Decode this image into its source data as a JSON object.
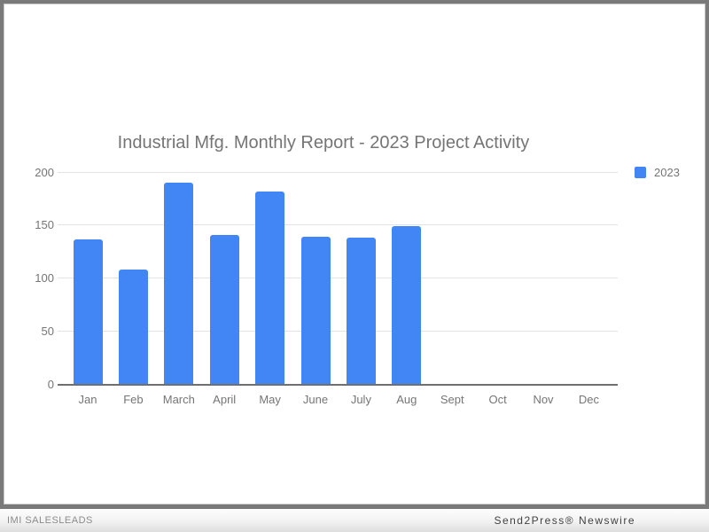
{
  "chart_data": {
    "type": "bar",
    "title": "Industrial Mfg. Monthly Report - 2023 Project Activity",
    "categories": [
      "Jan",
      "Feb",
      "March",
      "April",
      "May",
      "June",
      "July",
      "Aug",
      "Sept",
      "Oct",
      "Nov",
      "Dec"
    ],
    "series": [
      {
        "name": "2023",
        "color": "#4285f4",
        "values": [
          136,
          108,
          190,
          141,
          182,
          139,
          138,
          149,
          0,
          0,
          0,
          0
        ]
      }
    ],
    "xlabel": "",
    "ylabel": "",
    "y_ticks": [
      0,
      50,
      100,
      150,
      200
    ],
    "ylim": [
      0,
      200
    ],
    "grid": true,
    "legend_position": "right",
    "colors": {
      "bar": "#4285f4",
      "title_text": "#757575",
      "axis_text": "#757575",
      "gridline": "#e3e3e3",
      "baseline": "#6f6f6f"
    }
  },
  "legend": {
    "label": "2023",
    "swatch_color": "#4285f4"
  },
  "footer": {
    "left_text": "IMI SALESLEADS",
    "right_text": "Send2Press® Newswire"
  }
}
